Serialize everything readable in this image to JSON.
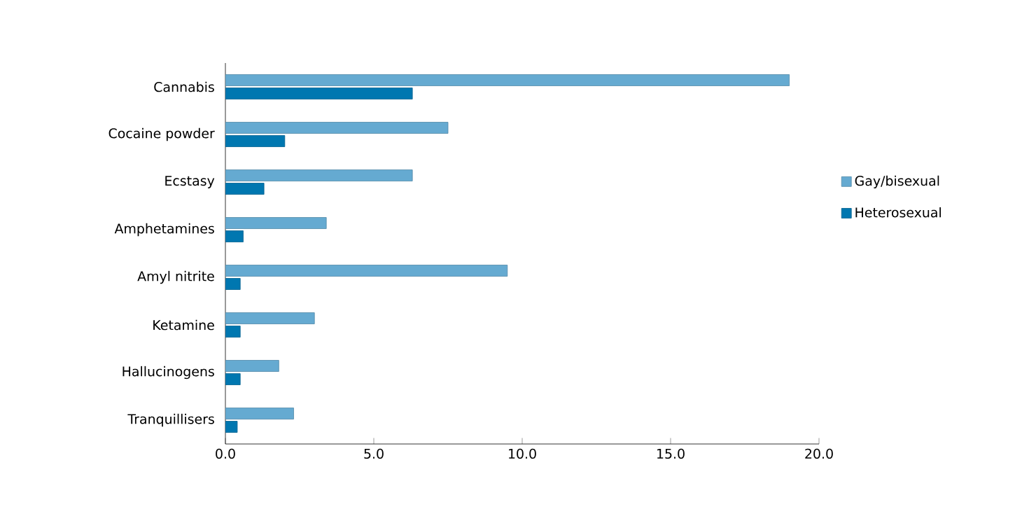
{
  "chart_data": {
    "type": "bar",
    "orientation": "horizontal",
    "categories": [
      "Cannabis",
      "Cocaine powder",
      "Ecstasy",
      "Amphetamines",
      "Amyl nitrite",
      "Ketamine",
      "Hallucinogens",
      "Tranquillisers"
    ],
    "series": [
      {
        "name": "Gay/bisexual",
        "color": "#65aad1",
        "values": [
          19.0,
          7.5,
          6.3,
          3.4,
          9.5,
          3.0,
          1.8,
          2.3
        ]
      },
      {
        "name": "Heterosexual",
        "color": "#0077b0",
        "values": [
          6.3,
          2.0,
          1.3,
          0.6,
          0.5,
          0.5,
          0.5,
          0.4
        ]
      }
    ],
    "xlim": [
      0,
      20
    ],
    "xticks": [
      {
        "value": 0,
        "label": "0.0"
      },
      {
        "value": 5,
        "label": "5.0"
      },
      {
        "value": 10,
        "label": "10.0"
      },
      {
        "value": 15,
        "label": "15.0"
      },
      {
        "value": 20,
        "label": "20.0"
      }
    ],
    "legend": "right",
    "grid": false
  }
}
